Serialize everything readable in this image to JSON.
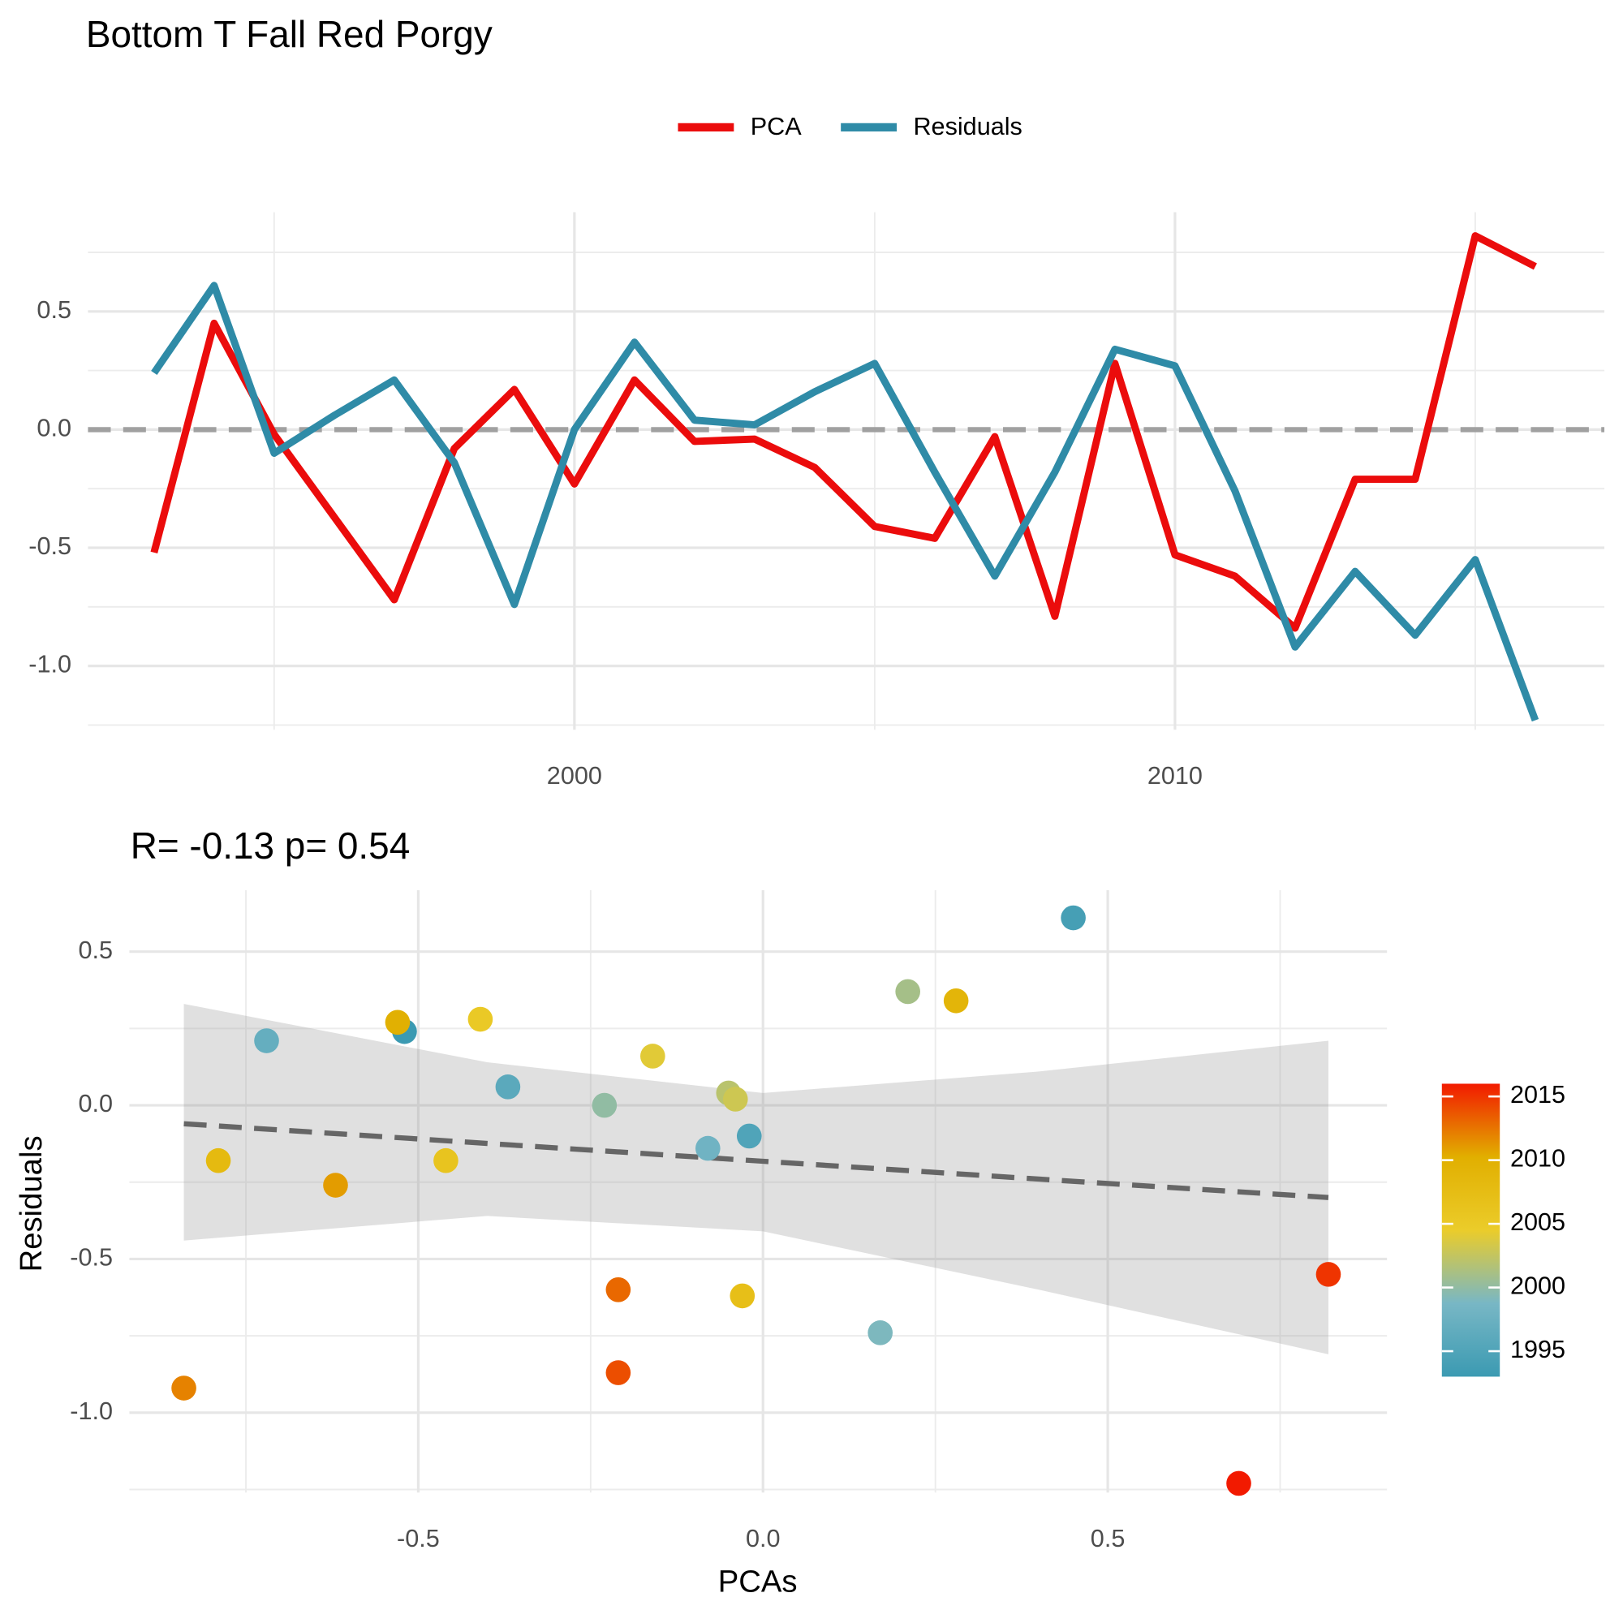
{
  "chart_data": [
    {
      "type": "line",
      "title": "Bottom T Fall  Red Porgy",
      "x": [
        1993,
        1994,
        1995,
        1996,
        1997,
        1998,
        1999,
        2000,
        2001,
        2002,
        2003,
        2004,
        2005,
        2006,
        2007,
        2008,
        2009,
        2010,
        2011,
        2012,
        2013,
        2014,
        2015,
        2016
      ],
      "series": [
        {
          "name": "PCA",
          "color": "#eb0c0c",
          "values": [
            -0.52,
            0.45,
            -0.02,
            -0.37,
            -0.72,
            -0.08,
            0.17,
            -0.23,
            0.21,
            -0.05,
            -0.04,
            -0.16,
            -0.41,
            -0.46,
            -0.03,
            -0.79,
            0.28,
            -0.53,
            -0.62,
            -0.84,
            -0.21,
            -0.21,
            0.82,
            0.69
          ]
        },
        {
          "name": "Residuals",
          "color": "#2f8ba7",
          "values": [
            0.24,
            0.61,
            -0.1,
            0.06,
            0.21,
            -0.14,
            -0.74,
            0.0,
            0.37,
            0.04,
            0.02,
            0.16,
            0.28,
            -0.18,
            -0.62,
            -0.18,
            0.34,
            0.27,
            -0.26,
            -0.92,
            -0.6,
            -0.87,
            -0.55,
            -1.23
          ]
        }
      ],
      "xlim": [
        1991.9,
        2017.15
      ],
      "xticks": [
        2000,
        2010
      ],
      "ylim": [
        -1.27,
        0.92
      ],
      "yticks": [
        {
          "value": -1,
          "label": "-1.0"
        },
        -0.5,
        {
          "value": 0,
          "label": "0.0"
        },
        0.5
      ],
      "hline": 0,
      "grid": true,
      "legend": "top"
    },
    {
      "type": "scatter",
      "title": "R= -0.13  p= 0.54",
      "xlabel": "PCAs",
      "ylabel": "Residuals",
      "x": [
        -0.52,
        0.45,
        -0.02,
        -0.37,
        -0.72,
        -0.08,
        0.17,
        -0.23,
        0.21,
        -0.05,
        -0.04,
        -0.16,
        -0.41,
        -0.46,
        -0.03,
        -0.79,
        0.28,
        -0.53,
        -0.62,
        -0.84,
        -0.21,
        -0.21,
        0.82,
        0.69
      ],
      "y": [
        0.24,
        0.61,
        -0.1,
        0.06,
        0.21,
        -0.14,
        -0.74,
        0.0,
        0.37,
        0.04,
        0.02,
        0.16,
        0.28,
        -0.18,
        -0.62,
        -0.18,
        0.34,
        0.27,
        -0.26,
        -0.92,
        -0.6,
        -0.87,
        -0.55,
        -1.23
      ],
      "years": [
        1993,
        1994,
        1995,
        1996,
        1997,
        1998,
        1999,
        2000,
        2001,
        2002,
        2003,
        2004,
        2005,
        2006,
        2007,
        2008,
        2009,
        2010,
        2011,
        2012,
        2013,
        2014,
        2015,
        2016
      ],
      "xlim": [
        -0.919,
        0.905
      ],
      "xticks": [
        -0.5,
        {
          "value": 0,
          "label": "0.0"
        },
        0.5
      ],
      "ylim": [
        -1.26,
        0.7
      ],
      "yticks": [
        {
          "value": -1,
          "label": "-1.0"
        },
        -0.5,
        {
          "value": 0,
          "label": "0.0"
        },
        0.5
      ],
      "fit": {
        "x": [
          -0.84,
          -0.4,
          0,
          0.4,
          0.82
        ],
        "y": [
          -0.06,
          -0.124,
          -0.182,
          -0.24,
          -0.3
        ],
        "lower": [
          -0.44,
          -0.36,
          -0.41,
          -0.6,
          -0.81
        ],
        "upper": [
          0.33,
          0.14,
          0.04,
          0.11,
          0.21
        ]
      },
      "colormap": [
        "#3b9ab2",
        "#78b7c5",
        "#ebcc2a",
        "#e1af00",
        "#f21a00"
      ],
      "clim": [
        1993,
        2016
      ],
      "cticks": [
        1995,
        2000,
        2005,
        2010,
        2015
      ],
      "grid": true
    }
  ]
}
